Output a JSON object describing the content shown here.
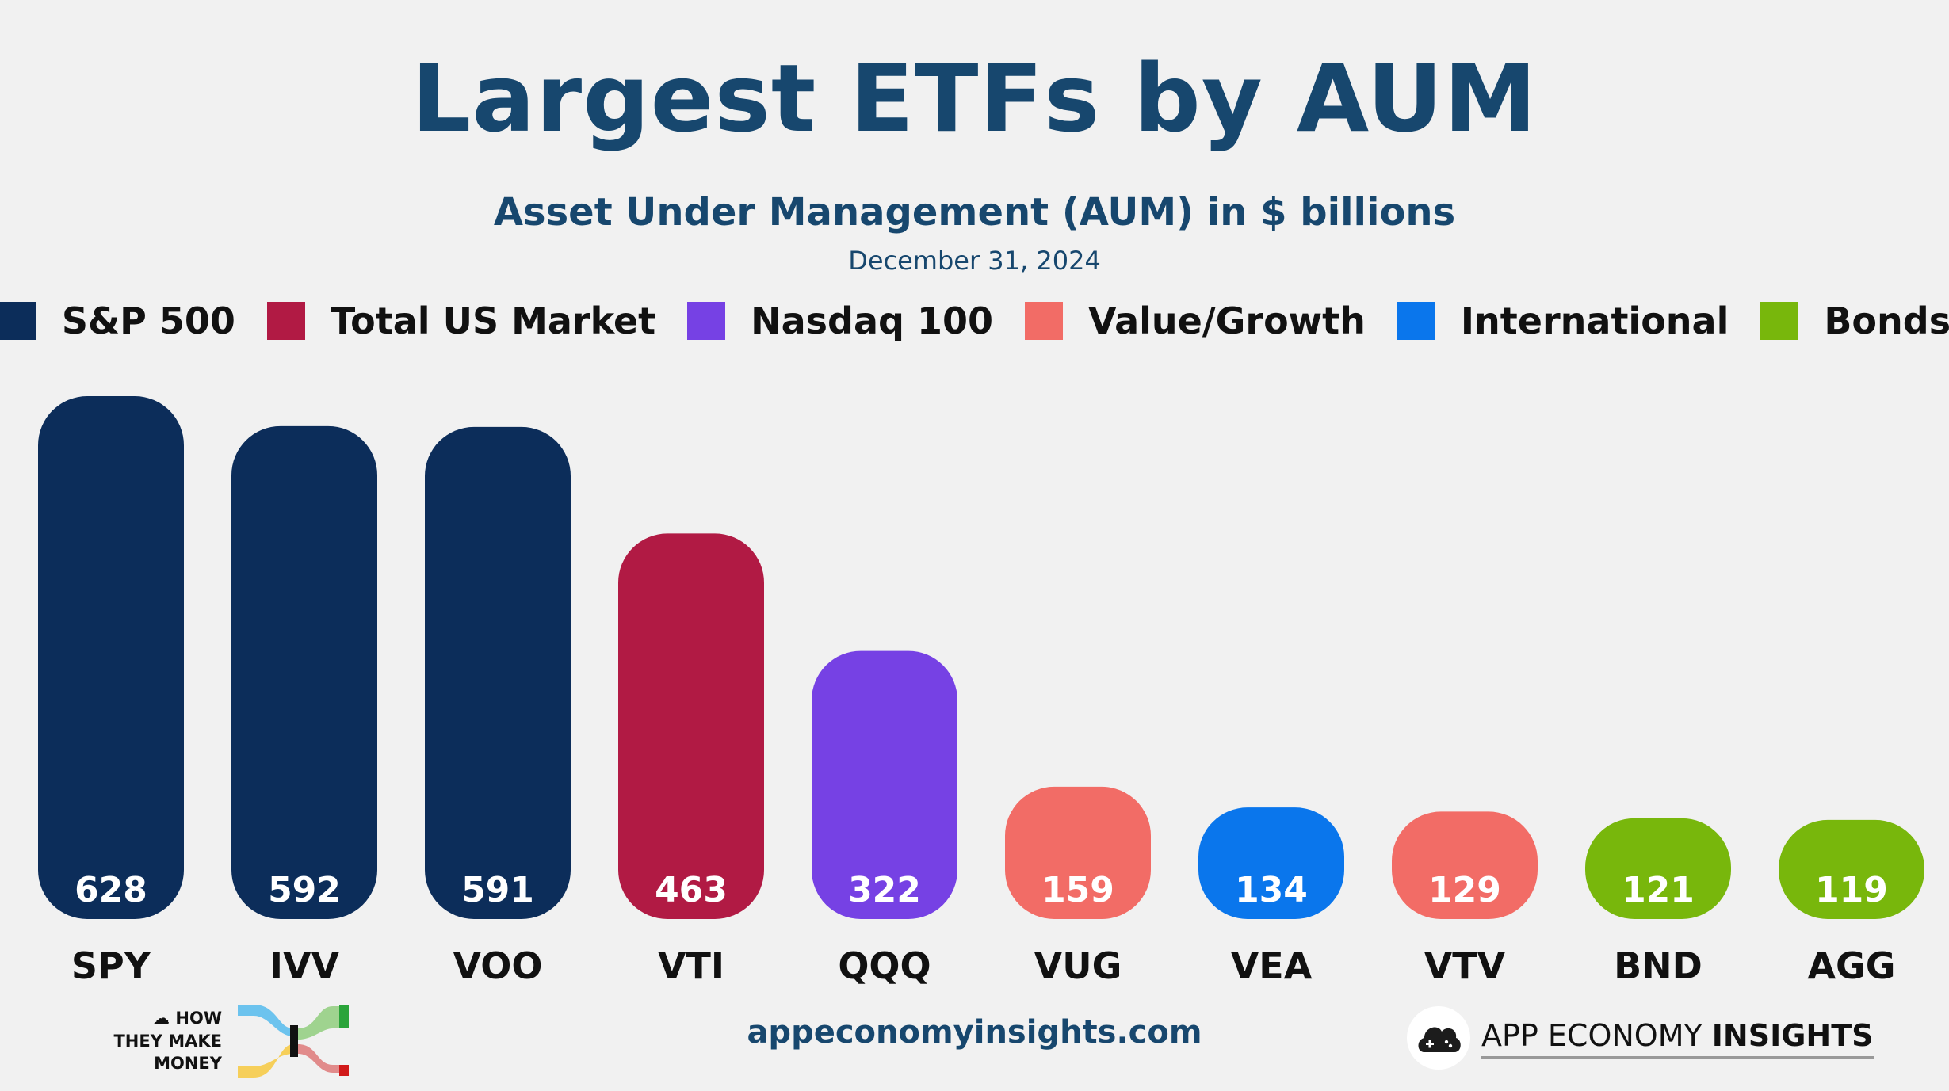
{
  "title": "Largest ETFs by AUM",
  "subtitle": "Asset Under Management (AUM) in $ billions",
  "date": "December 31, 2024",
  "legend": [
    {
      "label": "S&P 500",
      "color": "#0c2d5a"
    },
    {
      "label": "Total US Market",
      "color": "#b11a44"
    },
    {
      "label": "Nasdaq 100",
      "color": "#7641e4"
    },
    {
      "label": "Value/Growth",
      "color": "#f26c66"
    },
    {
      "label": "International",
      "color": "#0a76ec"
    },
    {
      "label": "Bonds",
      "color": "#78b70c"
    }
  ],
  "chart_data": {
    "type": "bar",
    "categories": [
      "SPY",
      "IVV",
      "VOO",
      "VTI",
      "QQQ",
      "VUG",
      "VEA",
      "VTV",
      "BND",
      "AGG"
    ],
    "values": [
      628,
      592,
      591,
      463,
      322,
      159,
      134,
      129,
      121,
      119
    ],
    "groups": [
      "S&P 500",
      "S&P 500",
      "S&P 500",
      "Total US Market",
      "Nasdaq 100",
      "Value/Growth",
      "International",
      "Value/Growth",
      "Bonds",
      "Bonds"
    ],
    "colors": [
      "#0c2d5a",
      "#0c2d5a",
      "#0c2d5a",
      "#b11a44",
      "#7641e4",
      "#f26c66",
      "#0a76ec",
      "#f26c66",
      "#78b70c",
      "#78b70c"
    ],
    "title": "Largest ETFs by AUM",
    "xlabel": "",
    "ylabel": "",
    "grid": false,
    "legend_position": "top"
  },
  "footer": {
    "website": "appeconomyinsights.com",
    "left_logo_text": "HOW THEY MAKE MONEY",
    "right_logo_text_regular": "APP ECONOMY",
    "right_logo_text_bold": "INSIGHTS"
  }
}
